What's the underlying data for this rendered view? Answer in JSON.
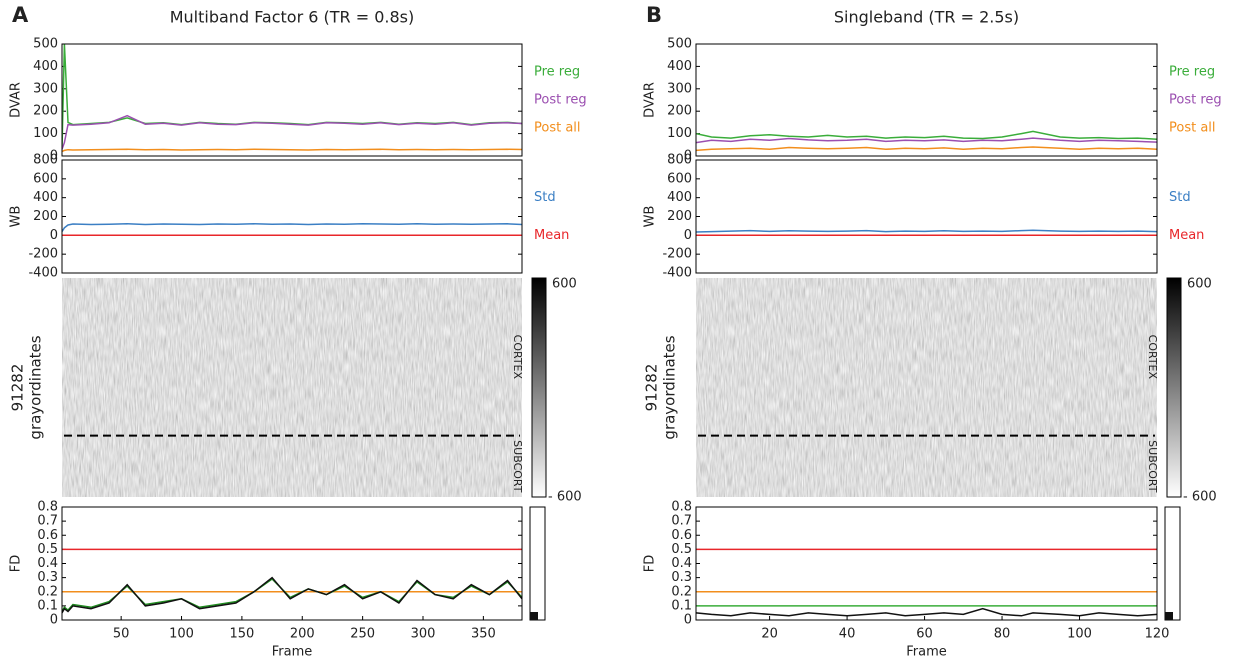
{
  "chart_data": [
    {
      "panel_label": "A",
      "title": "Multiband Factor 6 (TR = 0.8s)",
      "dvar": {
        "type": "line",
        "ylabel": "DVAR",
        "xlim": [
          1,
          382
        ],
        "ylim": [
          0,
          500
        ],
        "yticks": [
          0,
          100,
          200,
          300,
          400,
          500
        ],
        "x": [
          1,
          3,
          6,
          10,
          25,
          40,
          55,
          70,
          85,
          100,
          115,
          130,
          145,
          160,
          175,
          190,
          205,
          220,
          235,
          250,
          265,
          280,
          295,
          310,
          325,
          340,
          355,
          370,
          382
        ],
        "series": [
          {
            "name": "Pre reg",
            "color": "#3aad3a",
            "values": [
              30,
              500,
              150,
              140,
              145,
              150,
              170,
              145,
              148,
              140,
              150,
              145,
              142,
              150,
              148,
              145,
              140,
              150,
              148,
              145,
              150,
              142,
              148,
              145,
              150,
              140,
              148,
              150,
              145
            ]
          },
          {
            "name": "Post reg",
            "color": "#9b4fb0",
            "values": [
              30,
              60,
              140,
              138,
              142,
              148,
              180,
              142,
              146,
              138,
              148,
              142,
              140,
              148,
              146,
              142,
              138,
              148,
              146,
              142,
              148,
              140,
              146,
              142,
              148,
              138,
              146,
              148,
              145
            ]
          },
          {
            "name": "Post all",
            "color": "#f28e1c",
            "values": [
              20,
              25,
              28,
              27,
              28,
              29,
              30,
              28,
              29,
              27,
              28,
              29,
              28,
              30,
              29,
              28,
              27,
              29,
              28,
              29,
              30,
              28,
              29,
              28,
              29,
              28,
              29,
              30,
              29
            ]
          }
        ]
      },
      "wb": {
        "type": "line",
        "ylabel": "WB",
        "xlim": [
          1,
          382
        ],
        "ylim": [
          -400,
          800
        ],
        "yticks": [
          -400,
          -200,
          0,
          200,
          400,
          600,
          800
        ],
        "x": [
          1,
          3,
          6,
          10,
          25,
          40,
          55,
          70,
          85,
          100,
          115,
          130,
          145,
          160,
          175,
          190,
          205,
          220,
          235,
          250,
          265,
          280,
          295,
          310,
          325,
          340,
          355,
          370,
          382
        ],
        "series": [
          {
            "name": "Std",
            "color": "#3b7fc4",
            "values": [
              40,
              80,
              110,
              120,
              115,
              118,
              122,
              115,
              120,
              118,
              115,
              120,
              118,
              122,
              118,
              120,
              115,
              120,
              118,
              122,
              120,
              118,
              122,
              118,
              120,
              118,
              120,
              122,
              115
            ]
          },
          {
            "name": "Mean",
            "color": "#e8262a",
            "values": [
              0,
              0,
              0,
              0,
              0,
              0,
              0,
              0,
              0,
              0,
              0,
              0,
              0,
              0,
              0,
              0,
              0,
              0,
              0,
              0,
              0,
              0,
              0,
              0,
              0,
              0,
              0,
              0,
              0
            ]
          }
        ]
      },
      "grayordinates": {
        "type": "heatmap",
        "ylabel": [
          "91282",
          "grayordinates"
        ],
        "region_labels": [
          "CORTEX",
          "SUBCORT"
        ],
        "colorbar_labels": [
          "600",
          "- 600"
        ]
      },
      "fd": {
        "type": "line",
        "ylabel": "FD",
        "xlabel": "Frame",
        "xlim": [
          1,
          382
        ],
        "xticks": [
          50,
          100,
          150,
          200,
          250,
          300,
          350
        ],
        "ylim": [
          0,
          0.8
        ],
        "yticks": [
          0,
          0.1,
          0.2,
          0.3,
          0.4,
          0.5,
          0.6,
          0.7,
          0.8
        ],
        "thresholds": [
          {
            "value": 0.5,
            "color": "#e8262a"
          },
          {
            "value": 0.2,
            "color": "#f28e1c"
          }
        ],
        "x": [
          1,
          3,
          6,
          10,
          25,
          40,
          55,
          70,
          85,
          100,
          115,
          130,
          145,
          160,
          175,
          190,
          205,
          220,
          235,
          250,
          265,
          280,
          295,
          310,
          325,
          340,
          355,
          370,
          382
        ],
        "series": [
          {
            "color": "#1f8a1f",
            "values": [
              0.06,
              0.09,
              0.07,
              0.11,
              0.09,
              0.13,
              0.24,
              0.11,
              0.13,
              0.15,
              0.09,
              0.11,
              0.13,
              0.2,
              0.29,
              0.16,
              0.22,
              0.18,
              0.24,
              0.16,
              0.2,
              0.13,
              0.27,
              0.18,
              0.16,
              0.24,
              0.18,
              0.27,
              0.16
            ]
          },
          {
            "color": "#111111",
            "values": [
              0.05,
              0.08,
              0.06,
              0.1,
              0.08,
              0.12,
              0.25,
              0.1,
              0.12,
              0.15,
              0.08,
              0.1,
              0.12,
              0.2,
              0.3,
              0.15,
              0.22,
              0.18,
              0.25,
              0.15,
              0.2,
              0.12,
              0.28,
              0.18,
              0.15,
              0.25,
              0.18,
              0.28,
              0.15
            ]
          }
        ]
      }
    },
    {
      "panel_label": "B",
      "title": "Singleband (TR = 2.5s)",
      "dvar": {
        "type": "line",
        "ylabel": "DVAR",
        "xlim": [
          1,
          120
        ],
        "ylim": [
          0,
          500
        ],
        "yticks": [
          0,
          100,
          200,
          300,
          400,
          500
        ],
        "x": [
          1,
          5,
          10,
          15,
          20,
          25,
          30,
          35,
          40,
          45,
          50,
          55,
          60,
          65,
          70,
          75,
          80,
          85,
          88,
          95,
          100,
          105,
          110,
          115,
          120
        ],
        "series": [
          {
            "name": "Pre reg",
            "color": "#3aad3a",
            "values": [
              100,
              85,
              80,
              90,
              95,
              88,
              85,
              92,
              85,
              88,
              80,
              85,
              82,
              88,
              80,
              78,
              85,
              100,
              110,
              85,
              80,
              82,
              78,
              80,
              75
            ]
          },
          {
            "name": "Post reg",
            "color": "#9b4fb0",
            "values": [
              60,
              70,
              65,
              75,
              70,
              78,
              72,
              68,
              70,
              75,
              65,
              70,
              68,
              72,
              65,
              70,
              68,
              75,
              80,
              70,
              65,
              70,
              68,
              65,
              62
            ]
          },
          {
            "name": "Post all",
            "color": "#f28e1c",
            "values": [
              25,
              30,
              32,
              35,
              30,
              38,
              35,
              32,
              35,
              38,
              30,
              35,
              32,
              36,
              30,
              35,
              32,
              38,
              40,
              35,
              30,
              35,
              32,
              35,
              30
            ]
          }
        ]
      },
      "wb": {
        "type": "line",
        "ylabel": "WB",
        "xlim": [
          1,
          120
        ],
        "ylim": [
          -400,
          800
        ],
        "yticks": [
          -400,
          -200,
          0,
          200,
          400,
          600,
          800
        ],
        "x": [
          1,
          5,
          10,
          15,
          20,
          25,
          30,
          35,
          40,
          45,
          50,
          55,
          60,
          65,
          70,
          75,
          80,
          85,
          88,
          95,
          100,
          105,
          110,
          115,
          120
        ],
        "series": [
          {
            "name": "Std",
            "color": "#3b7fc4",
            "values": [
              35,
              40,
              45,
              50,
              42,
              48,
              45,
              42,
              45,
              50,
              40,
              45,
              42,
              48,
              42,
              45,
              42,
              50,
              55,
              45,
              42,
              45,
              42,
              45,
              40
            ]
          },
          {
            "name": "Mean",
            "color": "#e8262a",
            "values": [
              0,
              0,
              0,
              0,
              0,
              0,
              0,
              0,
              0,
              0,
              0,
              0,
              0,
              0,
              0,
              0,
              0,
              0,
              0,
              0,
              0,
              0,
              0,
              0,
              0
            ]
          }
        ]
      },
      "grayordinates": {
        "type": "heatmap",
        "ylabel": [
          "91282",
          "grayordinates"
        ],
        "region_labels": [
          "CORTEX",
          "SUBCORT"
        ],
        "colorbar_labels": [
          "600",
          "- 600"
        ]
      },
      "fd": {
        "type": "line",
        "ylabel": "FD",
        "xlabel": "Frame",
        "xlim": [
          1,
          120
        ],
        "xticks": [
          20,
          40,
          60,
          80,
          100,
          120
        ],
        "ylim": [
          0,
          0.8
        ],
        "yticks": [
          0,
          0.1,
          0.2,
          0.3,
          0.4,
          0.5,
          0.6,
          0.7,
          0.8
        ],
        "thresholds": [
          {
            "value": 0.5,
            "color": "#e8262a"
          },
          {
            "value": 0.2,
            "color": "#f28e1c"
          },
          {
            "value": 0.1,
            "color": "#3aad3a"
          }
        ],
        "x": [
          1,
          5,
          10,
          15,
          20,
          25,
          30,
          35,
          40,
          45,
          50,
          55,
          60,
          65,
          70,
          75,
          80,
          85,
          88,
          95,
          100,
          105,
          110,
          115,
          120
        ],
        "series": [
          {
            "color": "#111111",
            "values": [
              0.05,
              0.04,
              0.03,
              0.05,
              0.04,
              0.03,
              0.05,
              0.04,
              0.03,
              0.04,
              0.05,
              0.03,
              0.04,
              0.05,
              0.04,
              0.08,
              0.04,
              0.03,
              0.05,
              0.04,
              0.03,
              0.05,
              0.04,
              0.03,
              0.04
            ]
          }
        ]
      }
    }
  ]
}
